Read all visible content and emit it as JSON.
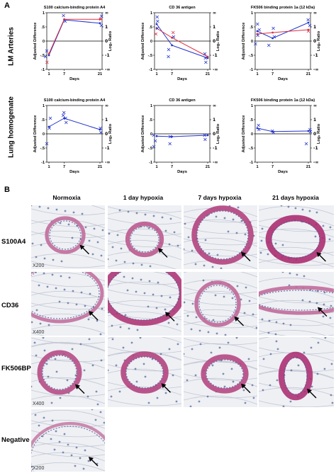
{
  "panel_a": {
    "letter": "A",
    "row_labels": [
      "LM Arteries",
      "Lung homogenate"
    ],
    "y_left_label": "Adjusted Difference",
    "y_right_label": "Log₂ Ratio",
    "x_label": "Days",
    "x_ticks": [
      "1",
      "7",
      "21"
    ],
    "y_left_ticks": [
      "1",
      ".5",
      "0",
      "-.5",
      "-1"
    ],
    "y_right_ticks": [
      "∞",
      "1",
      "0",
      "-1",
      "-∞"
    ]
  },
  "panel_b": {
    "letter": "B",
    "column_headers": [
      "Normoxia",
      "1 day hypoxia",
      "7 days hypoxia",
      "21 days hypoxia"
    ],
    "row_labels": [
      "S100A4",
      "CD36",
      "FK506BP",
      "Negative"
    ],
    "magnifications": [
      "X200",
      "X400",
      "X400",
      "X200"
    ]
  },
  "chart_data": [
    {
      "type": "line",
      "title": "S100 calcium-binding protein A4",
      "xlabel": "Days",
      "ylabel": "Adjusted Difference",
      "x": [
        1,
        7,
        21
      ],
      "ylim": [
        -1,
        1
      ],
      "series": [
        {
          "color": "#2233cc",
          "values": [
            -0.5,
            0.75,
            0.63
          ]
        },
        {
          "color": "#e03040",
          "values": [
            -0.45,
            0.77,
            0.77
          ]
        }
      ],
      "points": [
        {
          "x": 1,
          "y": -0.35,
          "color": "#2233cc"
        },
        {
          "x": 1,
          "y": -0.55,
          "color": "#2233cc"
        },
        {
          "x": 1,
          "y": -0.75,
          "color": "#e03040"
        },
        {
          "x": 7,
          "y": 0.9,
          "color": "#2233cc"
        },
        {
          "x": 7,
          "y": 0.7,
          "color": "#2233cc"
        },
        {
          "x": 21,
          "y": 0.88,
          "color": "#2233cc"
        },
        {
          "x": 21,
          "y": 0.78,
          "color": "#e03040"
        },
        {
          "x": 21,
          "y": 0.55,
          "color": "#2233cc"
        }
      ]
    },
    {
      "type": "line",
      "title": "CD 36 antigen",
      "xlabel": "Days",
      "ylabel": "Adjusted Difference",
      "x": [
        1,
        7,
        21
      ],
      "ylim": [
        -1,
        1
      ],
      "series": [
        {
          "color": "#2233cc",
          "values": [
            0.6,
            -0.15,
            -0.6
          ]
        },
        {
          "color": "#e03040",
          "values": [
            0.45,
            0.12,
            -0.55
          ]
        }
      ],
      "points": [
        {
          "x": 1,
          "y": 0.85,
          "color": "#2233cc"
        },
        {
          "x": 1,
          "y": 0.7,
          "color": "#2233cc"
        },
        {
          "x": 1,
          "y": 0.45,
          "color": "#2233cc"
        },
        {
          "x": 1,
          "y": 0.25,
          "color": "#e03040"
        },
        {
          "x": 7,
          "y": 0.3,
          "color": "#e03040"
        },
        {
          "x": 7,
          "y": 0.15,
          "color": "#2233cc"
        },
        {
          "x": 7,
          "y": -0.3,
          "color": "#2233cc"
        },
        {
          "x": 7,
          "y": -0.55,
          "color": "#2233cc"
        },
        {
          "x": 21,
          "y": -0.45,
          "color": "#2233cc"
        },
        {
          "x": 21,
          "y": -0.6,
          "color": "#2233cc"
        },
        {
          "x": 21,
          "y": -0.75,
          "color": "#2233cc"
        }
      ]
    },
    {
      "type": "line",
      "title": "FK506 binding protein 1a (12 kDa)",
      "xlabel": "Days",
      "ylabel": "Adjusted Difference",
      "x": [
        1,
        7,
        21
      ],
      "ylim": [
        -1,
        1
      ],
      "series": [
        {
          "color": "#2233cc",
          "values": [
            0.35,
            0.1,
            0.65
          ]
        },
        {
          "color": "#e03040",
          "values": [
            0.25,
            0.3,
            0.4
          ]
        }
      ],
      "points": [
        {
          "x": 1,
          "y": 0.6,
          "color": "#2233cc"
        },
        {
          "x": 1,
          "y": 0.4,
          "color": "#2233cc"
        },
        {
          "x": 1,
          "y": 0.2,
          "color": "#2233cc"
        },
        {
          "x": 1,
          "y": -0.1,
          "color": "#2233cc"
        },
        {
          "x": 7,
          "y": 0.45,
          "color": "#2233cc"
        },
        {
          "x": 7,
          "y": 0.15,
          "color": "#2233cc"
        },
        {
          "x": 7,
          "y": -0.15,
          "color": "#2233cc"
        },
        {
          "x": 21,
          "y": 0.75,
          "color": "#2233cc"
        },
        {
          "x": 21,
          "y": 0.55,
          "color": "#2233cc"
        },
        {
          "x": 21,
          "y": 0.35,
          "color": "#e03040"
        }
      ]
    },
    {
      "type": "line",
      "title": "S100 calcium-binding protein A4",
      "xlabel": "Days",
      "ylabel": "Adjusted Difference",
      "x": [
        1,
        7,
        21
      ],
      "ylim": [
        -1,
        1
      ],
      "series": [
        {
          "color": "#2233cc",
          "values": [
            0.25,
            0.55,
            0.15
          ]
        }
      ],
      "points": [
        {
          "x": 1,
          "y": 0.55,
          "color": "#2233cc"
        },
        {
          "x": 1,
          "y": 0.2,
          "color": "#2233cc"
        },
        {
          "x": 1,
          "y": -0.35,
          "color": "#2233cc"
        },
        {
          "x": 7,
          "y": 0.75,
          "color": "#2233cc"
        },
        {
          "x": 7,
          "y": 0.65,
          "color": "#2233cc"
        },
        {
          "x": 7,
          "y": 0.55,
          "color": "#2233cc"
        },
        {
          "x": 7,
          "y": 0.4,
          "color": "#2233cc"
        },
        {
          "x": 21,
          "y": 0.2,
          "color": "#2233cc"
        },
        {
          "x": 21,
          "y": 0.05,
          "color": "#2233cc"
        }
      ]
    },
    {
      "type": "line",
      "title": "CD 36 antigen",
      "xlabel": "Days",
      "ylabel": "Adjusted Difference",
      "x": [
        1,
        7,
        21
      ],
      "ylim": [
        -1,
        1
      ],
      "series": [
        {
          "color": "#2233cc",
          "values": [
            -0.08,
            -0.1,
            -0.05
          ]
        }
      ],
      "points": [
        {
          "x": 1,
          "y": -0.05,
          "color": "#2233cc"
        },
        {
          "x": 1,
          "y": -0.25,
          "color": "#2233cc"
        },
        {
          "x": 1,
          "y": -0.45,
          "color": "#2233cc"
        },
        {
          "x": 7,
          "y": -0.1,
          "color": "#2233cc"
        },
        {
          "x": 7,
          "y": -0.35,
          "color": "#2233cc"
        },
        {
          "x": 21,
          "y": -0.05,
          "color": "#2233cc"
        },
        {
          "x": 21,
          "y": -0.2,
          "color": "#2233cc"
        }
      ]
    },
    {
      "type": "line",
      "title": "FK506 binding protein 1a (12 kDa)",
      "xlabel": "Days",
      "ylabel": "Adjusted Difference",
      "x": [
        1,
        7,
        21
      ],
      "ylim": [
        -1,
        1
      ],
      "series": [
        {
          "color": "#2233cc",
          "values": [
            0.2,
            0.08,
            0.1
          ]
        }
      ],
      "points": [
        {
          "x": 1,
          "y": 0.3,
          "color": "#2233cc"
        },
        {
          "x": 1,
          "y": 0.15,
          "color": "#2233cc"
        },
        {
          "x": 7,
          "y": 0.1,
          "color": "#2233cc"
        },
        {
          "x": 7,
          "y": 0.05,
          "color": "#2233cc"
        },
        {
          "x": 21,
          "y": 0.15,
          "color": "#2233cc"
        },
        {
          "x": 21,
          "y": 0.08,
          "color": "#2233cc"
        },
        {
          "x": 21,
          "y": -0.35,
          "color": "#2233cc"
        }
      ]
    }
  ]
}
